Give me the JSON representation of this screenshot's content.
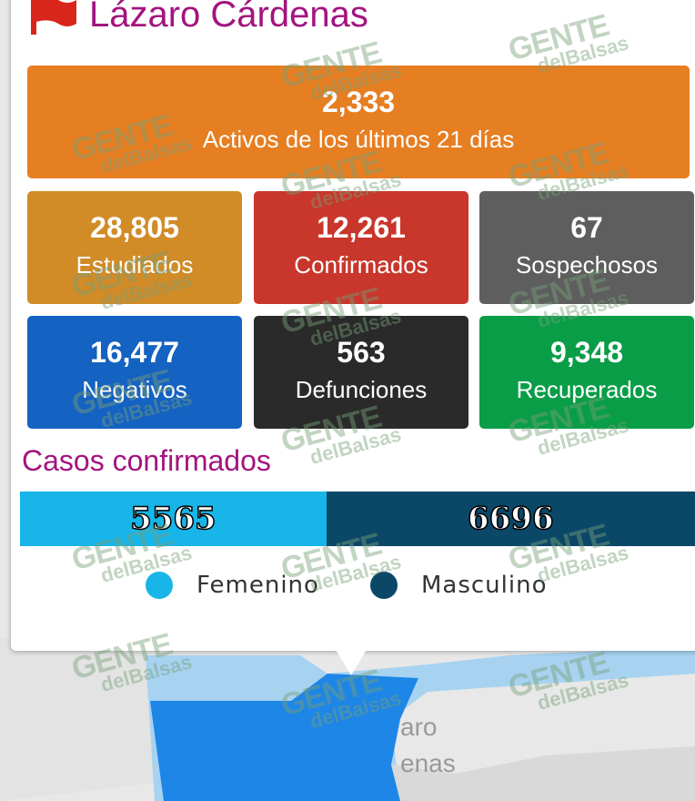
{
  "popup": {
    "title": "Lázaro Cárdenas",
    "active": {
      "value": "2,333",
      "label": "Activos de los últimos 21 días"
    },
    "cards": [
      {
        "value": "28,805",
        "label": "Estudiados"
      },
      {
        "value": "12,261",
        "label": "Confirmados"
      },
      {
        "value": "67",
        "label": "Sospechosos"
      },
      {
        "value": "16,477",
        "label": "Negativos"
      },
      {
        "value": "563",
        "label": "Defunciones"
      },
      {
        "value": "9,348",
        "label": "Recuperados"
      }
    ],
    "section_title": "Casos confirmados",
    "bar": {
      "segments": [
        {
          "name": "Femenino",
          "value": 5565,
          "color": "#17b5e8"
        },
        {
          "name": "Masculino",
          "value": 6696,
          "color": "#0b4868"
        }
      ]
    }
  },
  "map": {
    "labels": [
      "aro",
      "enas"
    ]
  },
  "watermark": {
    "brand": "GENTE",
    "sub": "delBalsas"
  }
}
